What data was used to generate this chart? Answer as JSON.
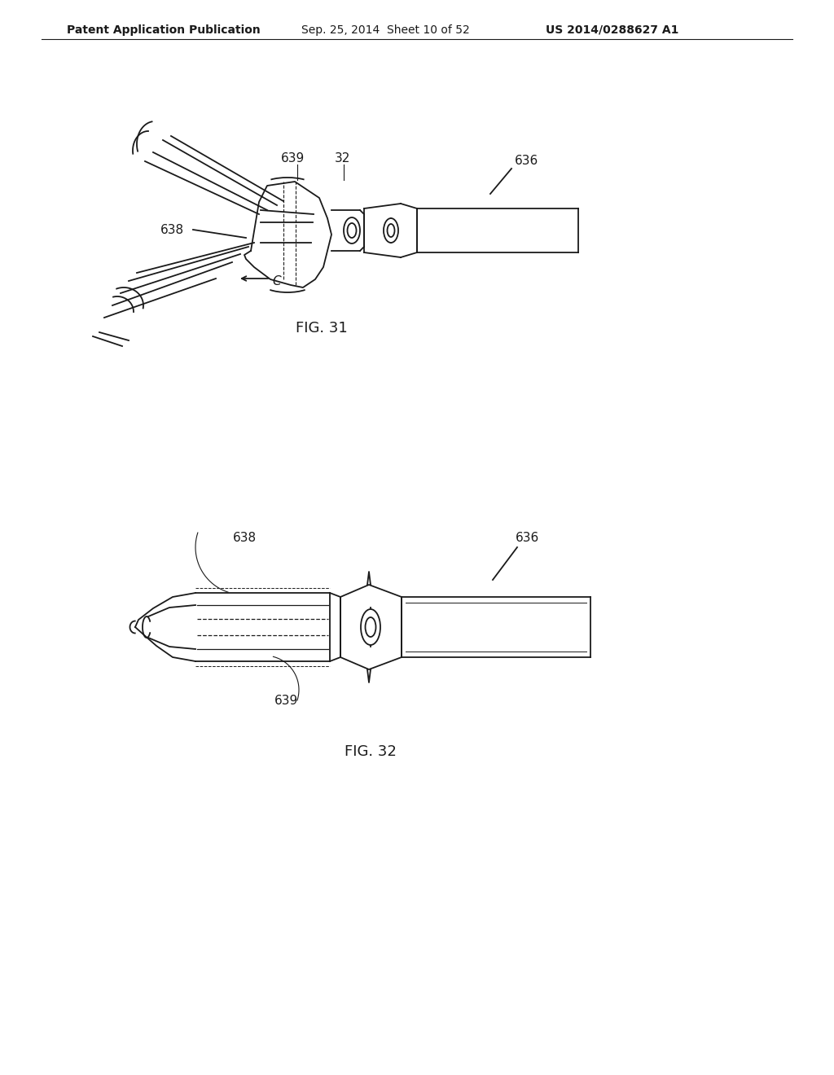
{
  "background_color": "#ffffff",
  "header_text": "Patent Application Publication",
  "header_date": "Sep. 25, 2014  Sheet 10 of 52",
  "header_patent": "US 2014/0288627 A1",
  "fig31_label": "FIG. 31",
  "fig32_label": "FIG. 32",
  "line_color": "#1a1a1a",
  "label_fontsize": 11,
  "header_fontsize": 10,
  "fig_label_fontsize": 13
}
